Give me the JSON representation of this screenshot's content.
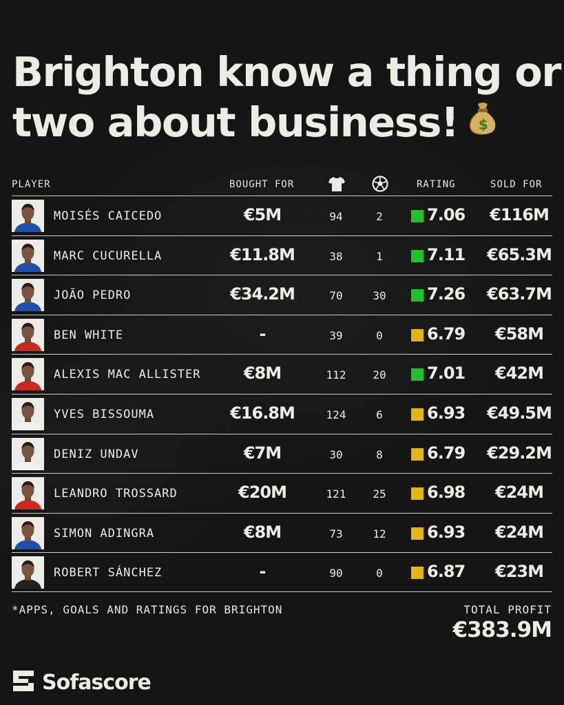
{
  "headline": {
    "line1": "Brighton know a thing or",
    "line2": "two about business!",
    "emoji_icon": "money-bag-icon"
  },
  "table": {
    "headers": {
      "player": "PLAYER",
      "bought_for": "BOUGHT FOR",
      "apps_icon": "jersey-icon",
      "goals_icon": "football-icon",
      "rating": "RATING",
      "sold_for": "SOLD FOR"
    },
    "rating_colors": {
      "green": "#22c02b",
      "yellow": "#e1b614"
    },
    "rows": [
      {
        "name": "MOISÉS CAICEDO",
        "bought_for": "€5M",
        "apps": "94",
        "goals": "2",
        "rating": "7.06",
        "rating_color": "green",
        "sold_for": "€116M",
        "kit": "#1f4fa8"
      },
      {
        "name": "MARC CUCURELLA",
        "bought_for": "€11.8M",
        "apps": "38",
        "goals": "1",
        "rating": "7.11",
        "rating_color": "green",
        "sold_for": "€65.3M",
        "kit": "#1f4fa8"
      },
      {
        "name": "JOÃO PEDRO",
        "bought_for": "€34.2M",
        "apps": "70",
        "goals": "30",
        "rating": "7.26",
        "rating_color": "green",
        "sold_for": "€63.7M",
        "kit": "#1f4fa8"
      },
      {
        "name": "BEN WHITE",
        "bought_for": "-",
        "apps": "39",
        "goals": "0",
        "rating": "6.79",
        "rating_color": "yellow",
        "sold_for": "€58M",
        "kit": "#c8281e"
      },
      {
        "name": "ALEXIS MAC ALLISTER",
        "bought_for": "€8M",
        "apps": "112",
        "goals": "20",
        "rating": "7.01",
        "rating_color": "green",
        "sold_for": "€42M",
        "kit": "#c8281e"
      },
      {
        "name": "YVES BISSOUMA",
        "bought_for": "€16.8M",
        "apps": "124",
        "goals": "6",
        "rating": "6.93",
        "rating_color": "yellow",
        "sold_for": "€49.5M",
        "kit": "#f2f2f2"
      },
      {
        "name": "DENIZ UNDAV",
        "bought_for": "€7M",
        "apps": "30",
        "goals": "8",
        "rating": "6.79",
        "rating_color": "yellow",
        "sold_for": "€29.2M",
        "kit": "#f2f2f2"
      },
      {
        "name": "LEANDRO TROSSARD",
        "bought_for": "€20M",
        "apps": "121",
        "goals": "25",
        "rating": "6.98",
        "rating_color": "yellow",
        "sold_for": "€24M",
        "kit": "#c8281e"
      },
      {
        "name": "SIMON ADINGRA",
        "bought_for": "€8M",
        "apps": "73",
        "goals": "12",
        "rating": "6.93",
        "rating_color": "yellow",
        "sold_for": "€24M",
        "kit": "#1f4fa8"
      },
      {
        "name": "ROBERT SÁNCHEZ",
        "bought_for": "-",
        "apps": "90",
        "goals": "0",
        "rating": "6.87",
        "rating_color": "yellow",
        "sold_for": "€23M",
        "kit": "#222222"
      }
    ]
  },
  "footnote": "*APPS, GOALS AND RATINGS FOR BRIGHTON",
  "total": {
    "label": "TOTAL PROFIT",
    "value": "€383.9M"
  },
  "brand": {
    "name": "Sofascore",
    "logo_icon": "sofascore-logo-icon"
  }
}
